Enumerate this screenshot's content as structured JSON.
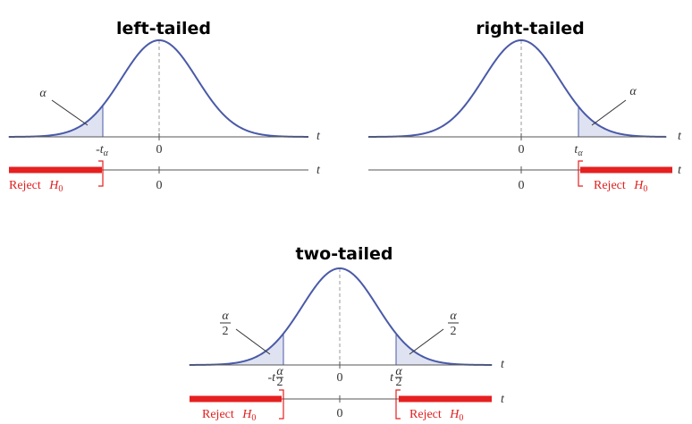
{
  "panels": [
    {
      "title": "left-tailed",
      "area_label": "α",
      "upper_axis_label": "t",
      "upper_zero": "0",
      "critical_labels": [
        {
          "sign": "-",
          "symbol": "t",
          "subscript": "α"
        }
      ],
      "lower_axis_label": "t",
      "lower_zero": "0",
      "reject_labels": [
        {
          "text": "Reject",
          "symbol": "H",
          "subscript": "0"
        }
      ]
    },
    {
      "title": "right-tailed",
      "area_label": "α",
      "upper_axis_label": "t",
      "upper_zero": "0",
      "critical_labels": [
        {
          "symbol": "t",
          "subscript": "α"
        }
      ],
      "lower_axis_label": "t",
      "lower_zero": "0",
      "reject_labels": [
        {
          "text": "Reject",
          "symbol": "H",
          "subscript": "0"
        }
      ]
    },
    {
      "title": "two-tailed",
      "area_labels": [
        {
          "numerator": "α",
          "denominator": "2"
        },
        {
          "numerator": "α",
          "denominator": "2"
        }
      ],
      "upper_axis_label": "t",
      "upper_zero": "0",
      "critical_labels": [
        {
          "sign": "-",
          "symbol": "t",
          "numerator": "α",
          "denominator": "2"
        },
        {
          "symbol": "t",
          "numerator": "α",
          "denominator": "2"
        }
      ],
      "lower_axis_label": "t",
      "lower_zero": "0",
      "reject_labels": [
        {
          "text": "Reject",
          "symbol": "H",
          "subscript": "0"
        },
        {
          "text": "Reject",
          "symbol": "H",
          "subscript": "0"
        }
      ]
    }
  ]
}
